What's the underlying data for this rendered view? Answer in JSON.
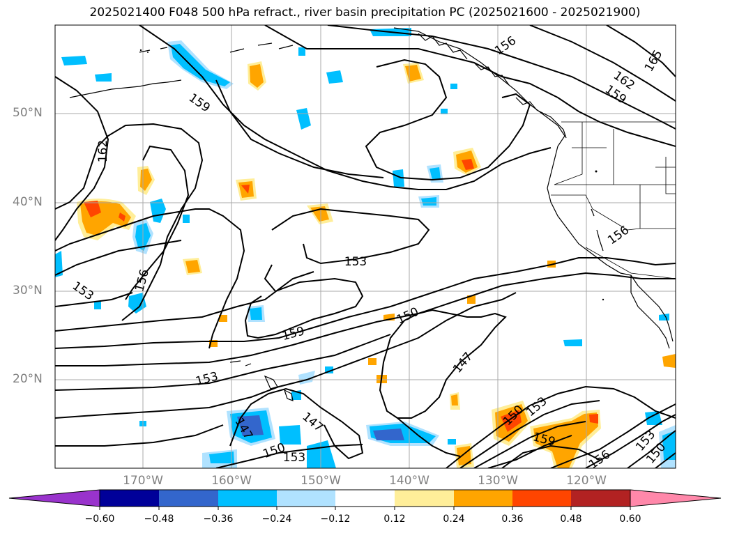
{
  "title": "2025021400 F048 500 hPa refract., river basin precipitation PC (2025021600 - 2025021900)",
  "lat_labels": [
    "50°N",
    "40°N",
    "30°N",
    "20°N"
  ],
  "lon_labels": [
    "170°W",
    "160°W",
    "150°W",
    "140°W",
    "130°W",
    "120°W"
  ],
  "contour_labels": [
    "156",
    "165",
    "162",
    "159",
    "159",
    "162",
    "156",
    "153",
    "156",
    "153",
    "150",
    "159",
    "147",
    "153",
    "147",
    "147",
    "150",
    "153",
    "150",
    "153",
    "159",
    "156",
    "153",
    "150"
  ],
  "colorbar": {
    "colors": [
      "#9933cc",
      "#000099",
      "#3366cc",
      "#00bfff",
      "#b0e2ff",
      "#ffffff",
      "#ffee99",
      "#ffa500",
      "#ff4500",
      "#b22222",
      "#ff88aa"
    ],
    "tick_labels": [
      "−0.60",
      "−0.48",
      "−0.36",
      "−0.24",
      "−0.12",
      "0.12",
      "0.24",
      "0.36",
      "0.48",
      "0.60"
    ]
  }
}
